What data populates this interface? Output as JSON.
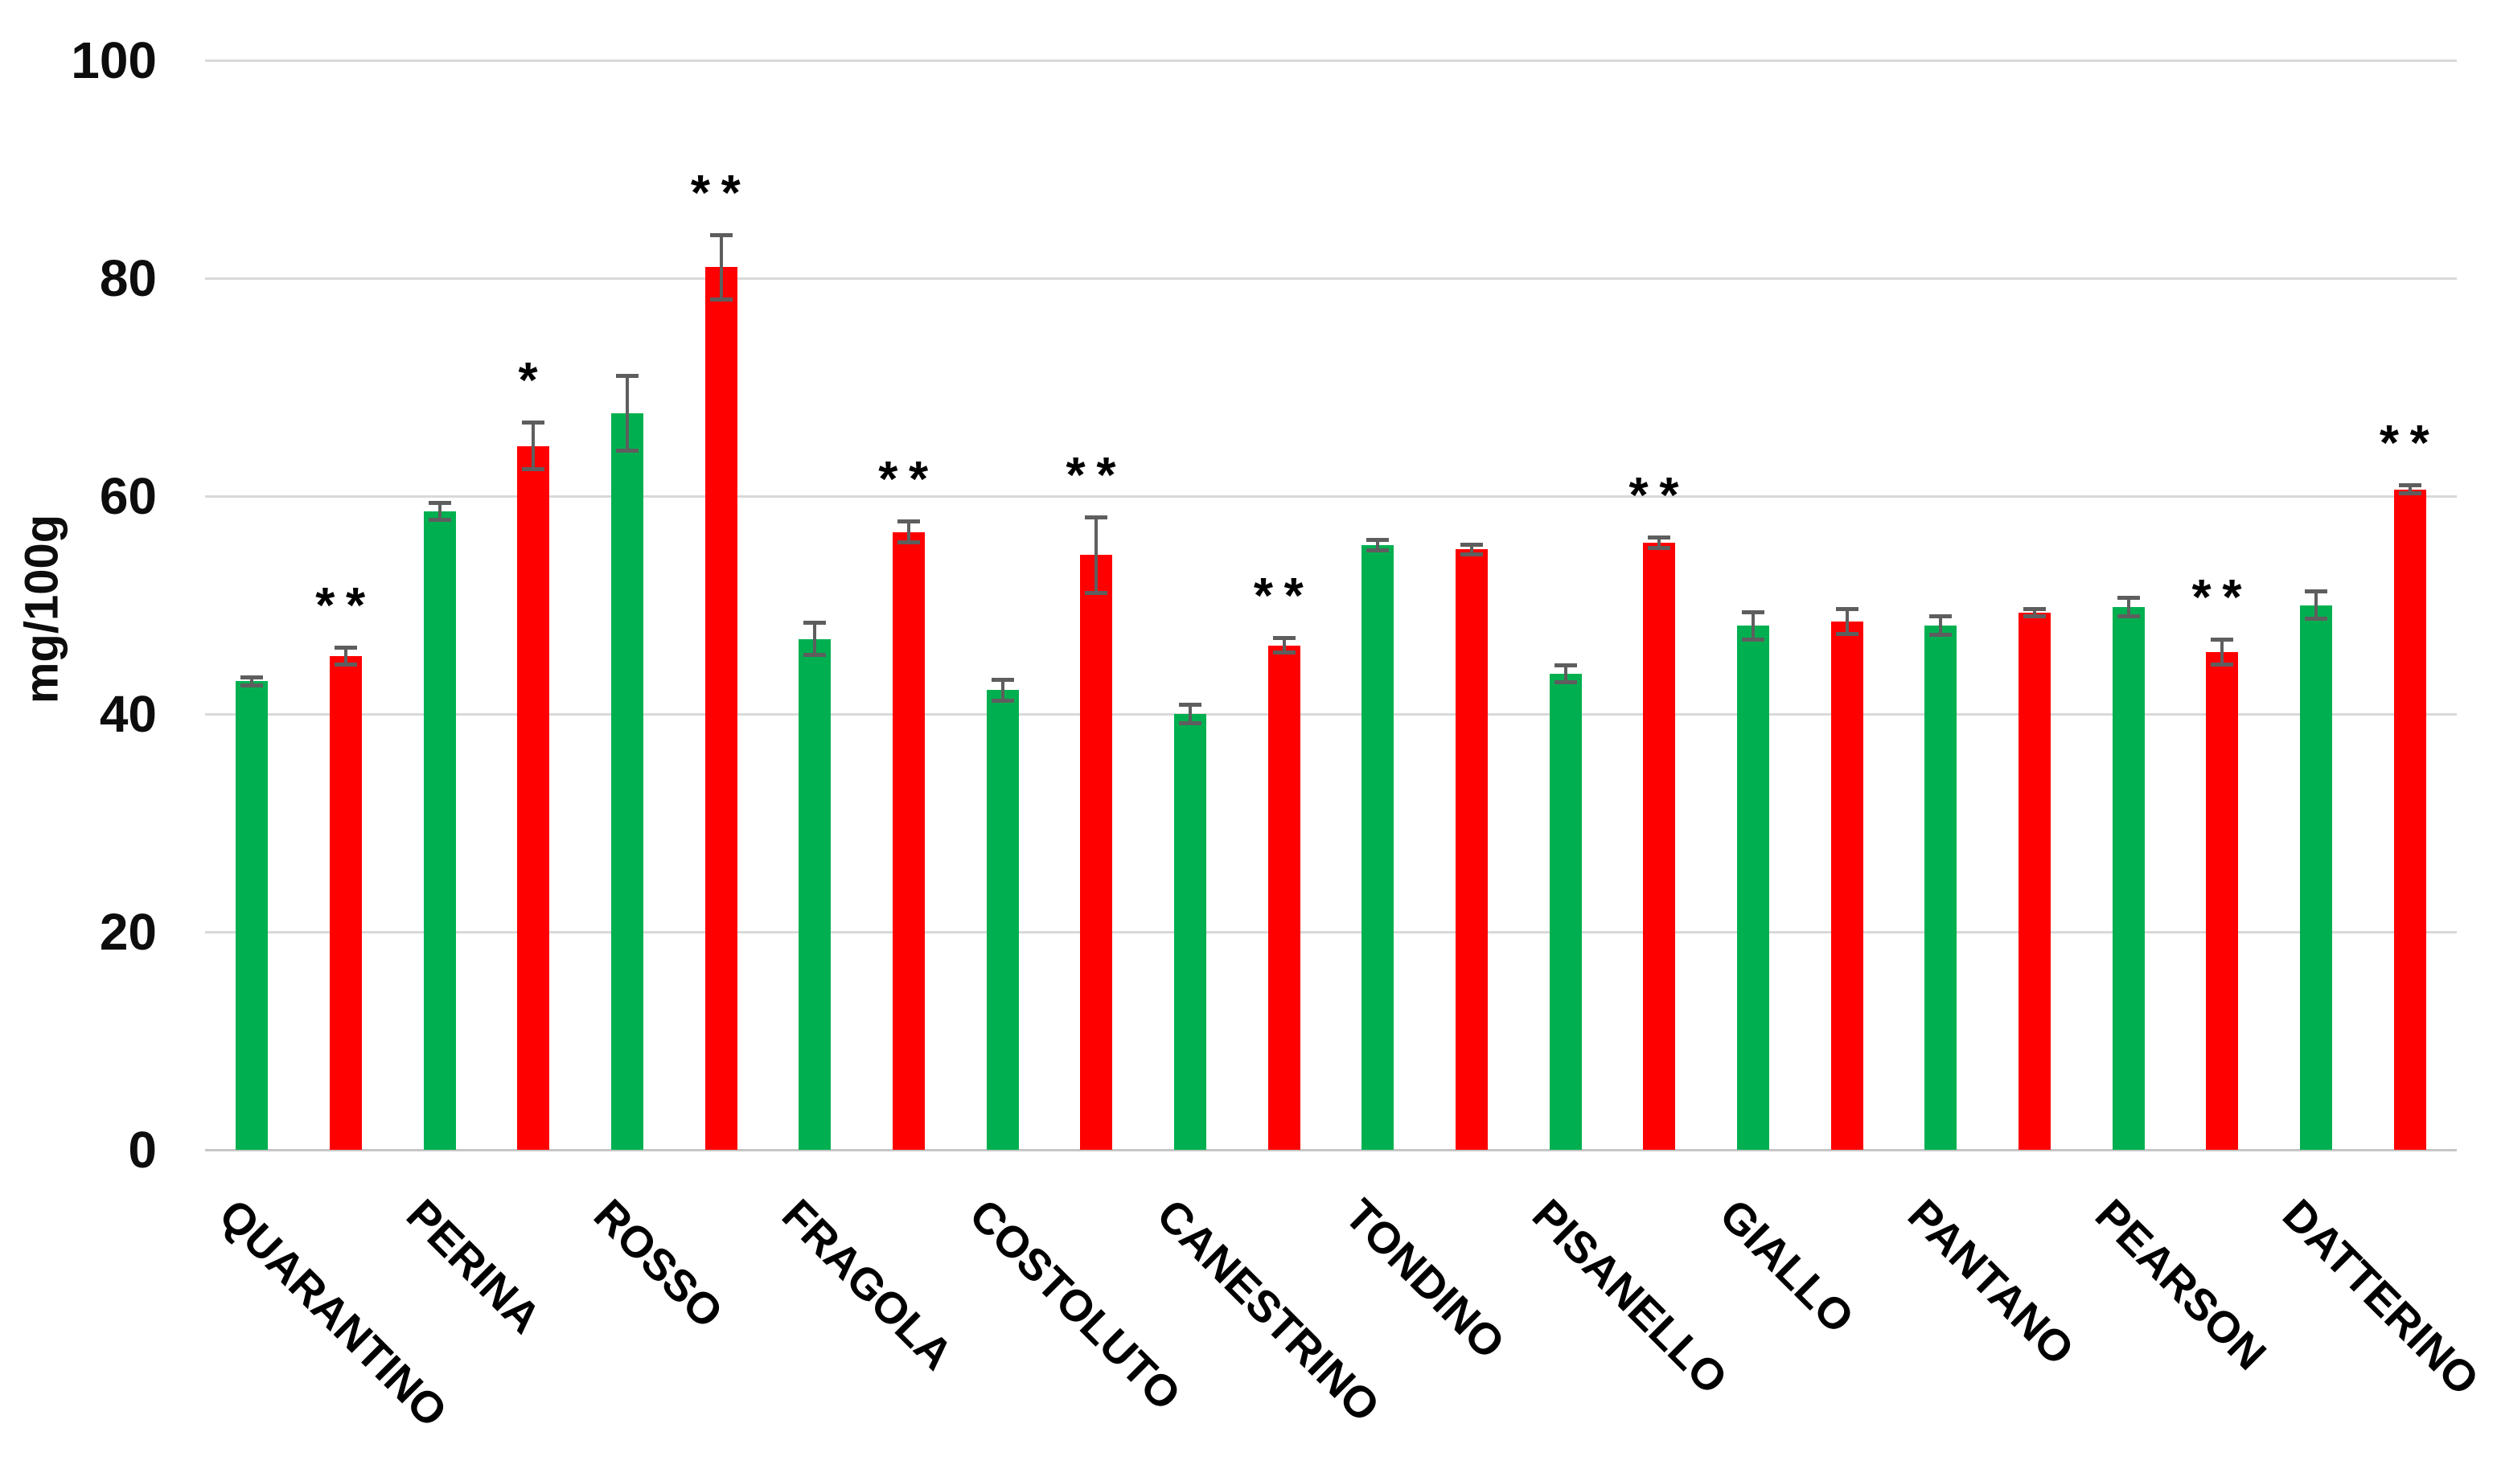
{
  "chart_data": {
    "type": "bar",
    "title": "",
    "xlabel": "",
    "ylabel": "mg/100g",
    "ylim": [
      0,
      100
    ],
    "yticks": [
      0,
      20,
      40,
      60,
      80,
      100
    ],
    "grid": true,
    "legend_position": "none",
    "categories": [
      "QUARANTINO",
      "PERINA",
      "ROSSO",
      "FRAGOLA",
      "COSTOLUTO",
      "CANESTRINO",
      "TONDINO",
      "PISANELLO",
      "GIALLO",
      "PANTANO",
      "PEARSON",
      "DATTERINO"
    ],
    "series": [
      {
        "name": "green",
        "color": "#00B050",
        "values": [
          43.0,
          58.6,
          67.6,
          46.9,
          42.2,
          40.0,
          55.5,
          43.7,
          48.1,
          48.1,
          49.8,
          50.0
        ],
        "errors": [
          0.4,
          0.8,
          3.5,
          1.5,
          1.0,
          0.9,
          0.5,
          0.8,
          1.3,
          0.9,
          0.9,
          1.3
        ]
      },
      {
        "name": "red",
        "color": "#FF0000",
        "values": [
          45.3,
          64.6,
          81.0,
          56.7,
          54.6,
          46.3,
          55.1,
          55.7,
          48.5,
          49.3,
          45.7,
          60.6
        ],
        "errors": [
          0.8,
          2.2,
          3.0,
          1.0,
          3.5,
          0.7,
          0.5,
          0.5,
          1.2,
          0.4,
          1.2,
          0.4
        ]
      }
    ],
    "significance_above_red": [
      "**",
      "*",
      "**",
      "**",
      "**",
      "**",
      "",
      "**",
      "",
      "",
      "**",
      "**"
    ]
  },
  "style": {
    "grid_color": "#D9D9D9",
    "baseline_color": "#C6C6C6",
    "error_bar_color": "#5E5E5E",
    "text_color": "#0d0d0d",
    "background": "#FFFFFF"
  }
}
